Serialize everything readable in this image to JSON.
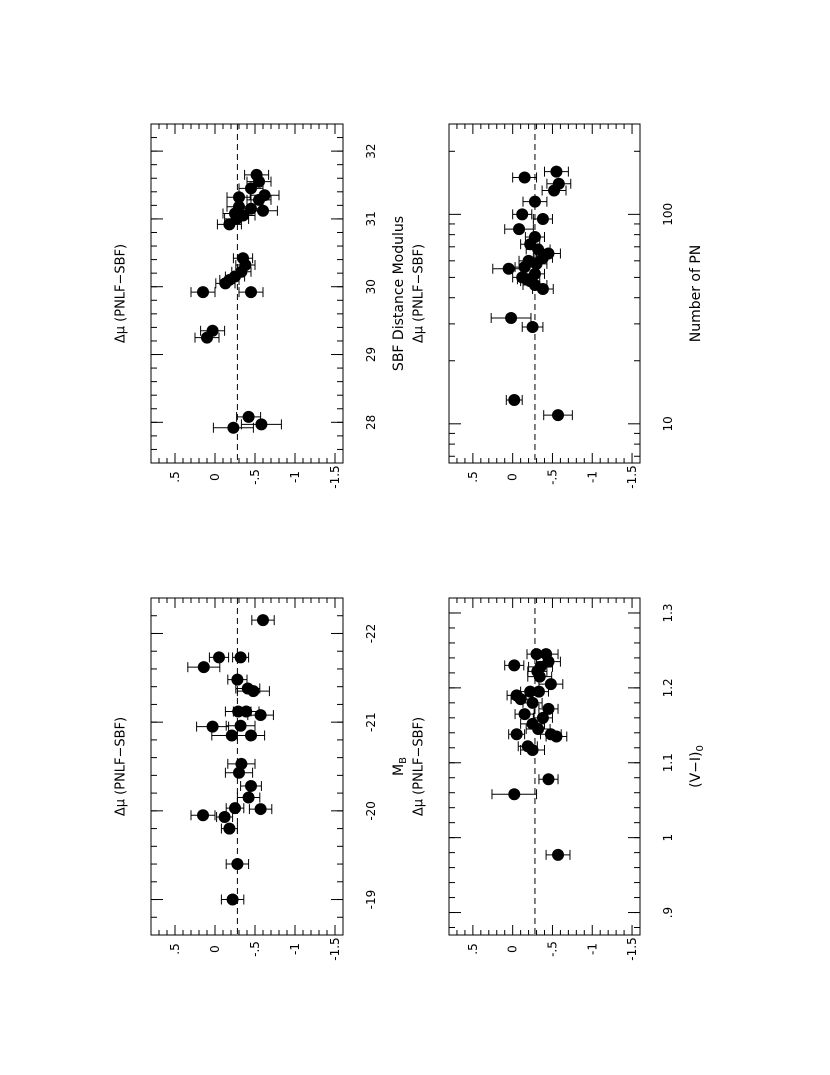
{
  "chart_data": [
    {
      "type": "scatter",
      "panel": "top-left",
      "xlabel": "M",
      "xlabel_sub": "B",
      "ylabel": "Δμ (PNLF−SBF)",
      "xlim": [
        -18.6,
        -22.4
      ],
      "ylim": [
        0.8,
        -1.6
      ],
      "xticks": [
        -19,
        -20,
        -21,
        -22
      ],
      "xtick_labels": [
        "-19",
        "-20",
        "-21",
        "-22"
      ],
      "yticks": [
        0.5,
        0,
        -0.5,
        -1,
        -1.5
      ],
      "ytick_labels": [
        ".5",
        "0",
        "-.5",
        "-1",
        "-1.5"
      ],
      "reference_line": -0.28,
      "points": [
        {
          "x": -19.0,
          "y": -0.22,
          "err": 0.14
        },
        {
          "x": -19.4,
          "y": -0.28,
          "err": 0.14
        },
        {
          "x": -19.8,
          "y": -0.18,
          "err": 0.1
        },
        {
          "x": -19.93,
          "y": -0.12,
          "err": 0.1
        },
        {
          "x": -19.95,
          "y": 0.15,
          "err": 0.15
        },
        {
          "x": -20.02,
          "y": -0.57,
          "err": 0.14
        },
        {
          "x": -20.03,
          "y": -0.25,
          "err": 0.11
        },
        {
          "x": -20.15,
          "y": -0.42,
          "err": 0.14
        },
        {
          "x": -20.28,
          "y": -0.45,
          "err": 0.13
        },
        {
          "x": -20.43,
          "y": -0.3,
          "err": 0.17
        },
        {
          "x": -20.53,
          "y": -0.33,
          "err": 0.17
        },
        {
          "x": -20.85,
          "y": -0.21,
          "err": 0.25
        },
        {
          "x": -20.85,
          "y": -0.45,
          "err": 0.17
        },
        {
          "x": -20.95,
          "y": 0.03,
          "err": 0.2
        },
        {
          "x": -20.96,
          "y": -0.32,
          "err": 0.18
        },
        {
          "x": -21.08,
          "y": -0.57,
          "err": 0.16
        },
        {
          "x": -21.12,
          "y": -0.39,
          "err": 0.16
        },
        {
          "x": -21.12,
          "y": -0.29,
          "err": 0.16
        },
        {
          "x": -21.35,
          "y": -0.48,
          "err": 0.2
        },
        {
          "x": -21.38,
          "y": -0.41,
          "err": 0.15
        },
        {
          "x": -21.48,
          "y": -0.28,
          "err": 0.12
        },
        {
          "x": -21.62,
          "y": 0.14,
          "err": 0.2
        },
        {
          "x": -21.73,
          "y": -0.32,
          "err": 0.1
        },
        {
          "x": -21.73,
          "y": -0.05,
          "err": 0.12
        },
        {
          "x": -22.15,
          "y": -0.6,
          "err": 0.14
        }
      ]
    },
    {
      "type": "scatter",
      "panel": "top-right",
      "xlabel": "SBF Distance Modulus",
      "ylabel": "Δμ (PNLF−SBF)",
      "xlim": [
        27.4,
        32.4
      ],
      "ylim": [
        0.8,
        -1.6
      ],
      "xticks": [
        28,
        29,
        30,
        31,
        32
      ],
      "xtick_labels": [
        "28",
        "29",
        "30",
        "31",
        "32"
      ],
      "yticks": [
        0.5,
        0,
        -0.5,
        -1,
        -1.5
      ],
      "ytick_labels": [
        ".5",
        "0",
        "-.5",
        "-1",
        "-1.5"
      ],
      "reference_line": -0.28,
      "points": [
        {
          "x": 27.92,
          "y": -0.23,
          "err": 0.25
        },
        {
          "x": 27.97,
          "y": -0.58,
          "err": 0.25
        },
        {
          "x": 28.08,
          "y": -0.42,
          "err": 0.15
        },
        {
          "x": 29.25,
          "y": 0.1,
          "err": 0.15
        },
        {
          "x": 29.35,
          "y": 0.03,
          "err": 0.15
        },
        {
          "x": 29.92,
          "y": 0.15,
          "err": 0.15
        },
        {
          "x": 29.92,
          "y": -0.45,
          "err": 0.15
        },
        {
          "x": 30.05,
          "y": -0.13,
          "err": 0.12
        },
        {
          "x": 30.1,
          "y": -0.18,
          "err": 0.12
        },
        {
          "x": 30.15,
          "y": -0.25,
          "err": 0.12
        },
        {
          "x": 30.22,
          "y": -0.33,
          "err": 0.12
        },
        {
          "x": 30.32,
          "y": -0.38,
          "err": 0.12
        },
        {
          "x": 30.42,
          "y": -0.35,
          "err": 0.12
        },
        {
          "x": 30.92,
          "y": -0.18,
          "err": 0.15
        },
        {
          "x": 31.0,
          "y": -0.27,
          "err": 0.15
        },
        {
          "x": 31.05,
          "y": -0.35,
          "err": 0.15
        },
        {
          "x": 31.08,
          "y": -0.25,
          "err": 0.15
        },
        {
          "x": 31.12,
          "y": -0.6,
          "err": 0.18
        },
        {
          "x": 31.15,
          "y": -0.45,
          "err": 0.15
        },
        {
          "x": 31.18,
          "y": -0.3,
          "err": 0.15
        },
        {
          "x": 31.28,
          "y": -0.55,
          "err": 0.15
        },
        {
          "x": 31.32,
          "y": -0.3,
          "err": 0.15
        },
        {
          "x": 31.35,
          "y": -0.62,
          "err": 0.18
        },
        {
          "x": 31.45,
          "y": -0.45,
          "err": 0.15
        },
        {
          "x": 31.55,
          "y": -0.55,
          "err": 0.15
        },
        {
          "x": 31.65,
          "y": -0.52,
          "err": 0.15
        }
      ]
    },
    {
      "type": "scatter",
      "panel": "bottom-left",
      "xlabel": "(V−I)",
      "xlabel_sub": "0",
      "ylabel": "Δμ (PNLF−SBF)",
      "xlim": [
        0.87,
        1.32
      ],
      "ylim": [
        0.8,
        -1.6
      ],
      "xticks": [
        0.9,
        1.0,
        1.1,
        1.2,
        1.3
      ],
      "xtick_labels": [
        ".9",
        "1",
        "1.1",
        "1.2",
        "1.3"
      ],
      "yticks": [
        0.5,
        0,
        -0.5,
        -1,
        -1.5
      ],
      "ytick_labels": [
        ".5",
        "0",
        "-.5",
        "-1",
        "-1.5"
      ],
      "reference_line": -0.28,
      "points": [
        {
          "x": 0.977,
          "y": -0.57,
          "err": 0.15
        },
        {
          "x": 1.058,
          "y": -0.02,
          "err": 0.28
        },
        {
          "x": 1.078,
          "y": -0.45,
          "err": 0.12
        },
        {
          "x": 1.117,
          "y": -0.25,
          "err": 0.15
        },
        {
          "x": 1.122,
          "y": -0.19,
          "err": 0.12
        },
        {
          "x": 1.135,
          "y": -0.55,
          "err": 0.13
        },
        {
          "x": 1.138,
          "y": -0.48,
          "err": 0.13
        },
        {
          "x": 1.138,
          "y": -0.05,
          "err": 0.1
        },
        {
          "x": 1.145,
          "y": -0.32,
          "err": 0.15
        },
        {
          "x": 1.152,
          "y": -0.25,
          "err": 0.15
        },
        {
          "x": 1.16,
          "y": -0.38,
          "err": 0.12
        },
        {
          "x": 1.165,
          "y": -0.15,
          "err": 0.12
        },
        {
          "x": 1.172,
          "y": -0.45,
          "err": 0.12
        },
        {
          "x": 1.18,
          "y": -0.25,
          "err": 0.12
        },
        {
          "x": 1.185,
          "y": -0.1,
          "err": 0.12
        },
        {
          "x": 1.19,
          "y": -0.05,
          "err": 0.12
        },
        {
          "x": 1.195,
          "y": -0.33,
          "err": 0.12
        },
        {
          "x": 1.195,
          "y": -0.22,
          "err": 0.12
        },
        {
          "x": 1.205,
          "y": -0.48,
          "err": 0.15
        },
        {
          "x": 1.215,
          "y": -0.34,
          "err": 0.15
        },
        {
          "x": 1.222,
          "y": -0.31,
          "err": 0.12
        },
        {
          "x": 1.228,
          "y": -0.35,
          "err": 0.15
        },
        {
          "x": 1.23,
          "y": -0.02,
          "err": 0.12
        },
        {
          "x": 1.235,
          "y": -0.45,
          "err": 0.15
        },
        {
          "x": 1.245,
          "y": -0.42,
          "err": 0.15
        },
        {
          "x": 1.245,
          "y": -0.3,
          "err": 0.12
        }
      ]
    },
    {
      "type": "scatter",
      "panel": "bottom-right",
      "xlabel": "Number of PN",
      "ylabel": "Δμ (PNLF−SBF)",
      "xscale": "log",
      "xlim": [
        6.5,
        270
      ],
      "ylim": [
        0.8,
        -1.6
      ],
      "xticks": [
        10,
        100
      ],
      "xtick_labels": [
        "10",
        "100"
      ],
      "xminor_ticks": [
        7,
        8,
        9,
        20,
        30,
        40,
        50,
        60,
        70,
        80,
        90,
        200
      ],
      "yticks": [
        0.5,
        0,
        -0.5,
        -1,
        -1.5
      ],
      "ytick_labels": [
        ".5",
        "0",
        "-.5",
        "-1",
        "-1.5"
      ],
      "reference_line": -0.28,
      "points": [
        {
          "x": 11,
          "y": -0.57,
          "err": 0.18
        },
        {
          "x": 13,
          "y": -0.02,
          "err": 0.1
        },
        {
          "x": 29,
          "y": -0.25,
          "err": 0.13
        },
        {
          "x": 32,
          "y": 0.02,
          "err": 0.25
        },
        {
          "x": 44,
          "y": -0.38,
          "err": 0.13
        },
        {
          "x": 46,
          "y": -0.28,
          "err": 0.15
        },
        {
          "x": 48,
          "y": -0.22,
          "err": 0.12
        },
        {
          "x": 49,
          "y": -0.18,
          "err": 0.12
        },
        {
          "x": 50,
          "y": -0.12,
          "err": 0.12
        },
        {
          "x": 52,
          "y": -0.28,
          "err": 0.12
        },
        {
          "x": 55,
          "y": 0.05,
          "err": 0.2
        },
        {
          "x": 56,
          "y": -0.15,
          "err": 0.12
        },
        {
          "x": 58,
          "y": -0.3,
          "err": 0.13
        },
        {
          "x": 60,
          "y": -0.2,
          "err": 0.12
        },
        {
          "x": 62,
          "y": -0.38,
          "err": 0.12
        },
        {
          "x": 65,
          "y": -0.45,
          "err": 0.15
        },
        {
          "x": 68,
          "y": -0.32,
          "err": 0.15
        },
        {
          "x": 72,
          "y": -0.22,
          "err": 0.12
        },
        {
          "x": 78,
          "y": -0.28,
          "err": 0.12
        },
        {
          "x": 85,
          "y": -0.08,
          "err": 0.18
        },
        {
          "x": 95,
          "y": -0.38,
          "err": 0.12
        },
        {
          "x": 100,
          "y": -0.12,
          "err": 0.12
        },
        {
          "x": 115,
          "y": -0.28,
          "err": 0.15
        },
        {
          "x": 130,
          "y": -0.52,
          "err": 0.15
        },
        {
          "x": 140,
          "y": -0.58,
          "err": 0.15
        },
        {
          "x": 150,
          "y": -0.15,
          "err": 0.15
        },
        {
          "x": 160,
          "y": -0.55,
          "err": 0.15
        }
      ]
    }
  ]
}
